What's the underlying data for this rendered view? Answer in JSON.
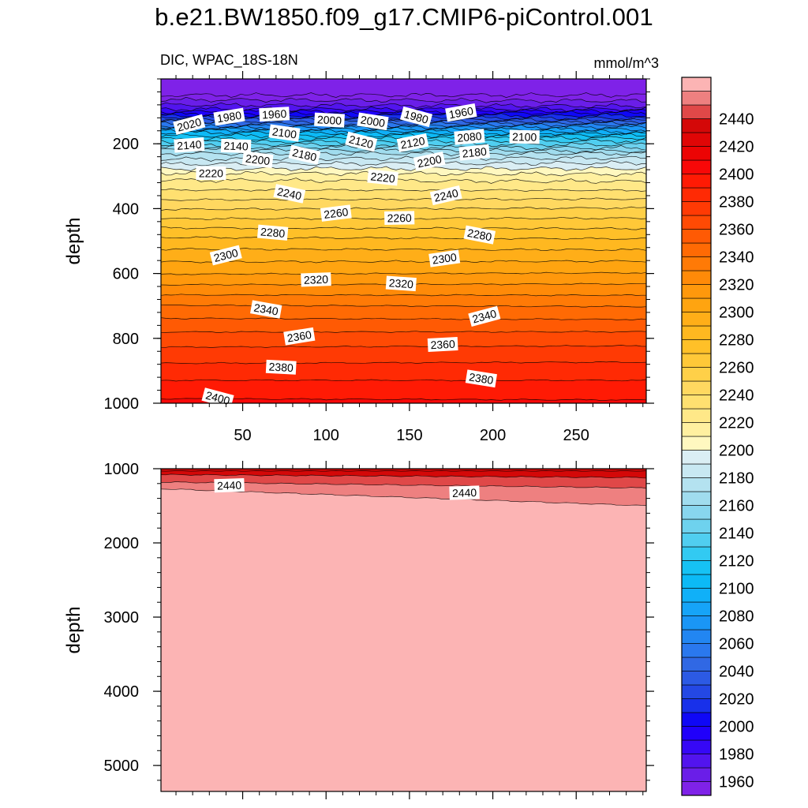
{
  "title": "b.e21.BW1850.f09_g17.CMIP6-piControl.001",
  "subtitle_left": "DIC, WPAC_18S-18N",
  "subtitle_right": "mmol/m^3",
  "colors": {
    "levels": [
      1950,
      1960,
      1970,
      1980,
      1990,
      2000,
      2010,
      2020,
      2030,
      2040,
      2050,
      2060,
      2070,
      2080,
      2090,
      2100,
      2110,
      2120,
      2130,
      2140,
      2150,
      2160,
      2170,
      2180,
      2190,
      2200,
      2210,
      2220,
      2230,
      2240,
      2250,
      2260,
      2270,
      2280,
      2290,
      2300,
      2310,
      2320,
      2330,
      2340,
      2350,
      2360,
      2370,
      2380,
      2390,
      2400,
      2410,
      2420,
      2430,
      2440,
      2450,
      2460
    ],
    "palette": [
      "#7f22e8",
      "#6a1ee8",
      "#5214ee",
      "#3608f6",
      "#2000fa",
      "#0f08f6",
      "#1830ea",
      "#2448e4",
      "#2c5ae4",
      "#3068e4",
      "#2a78ee",
      "#2286f2",
      "#1a96f6",
      "#16a4f8",
      "#10b0f8",
      "#0cbaf6",
      "#16c2f4",
      "#32caf2",
      "#50cef0",
      "#6ed2ee",
      "#88d6ee",
      "#a0dcee",
      "#b4e2f0",
      "#c8e8f2",
      "#daeef4",
      "#fff8c0",
      "#fff0a0",
      "#ffe888",
      "#ffe070",
      "#ffd860",
      "#ffd048",
      "#ffc838",
      "#ffc028",
      "#ffb820",
      "#ffae18",
      "#ffa410",
      "#ff980c",
      "#ff8a08",
      "#ff7a06",
      "#ff6a04",
      "#ff5a04",
      "#ff4a04",
      "#ff3a04",
      "#ff2a04",
      "#ff1a04",
      "#f80808",
      "#ec0404",
      "#e00606",
      "#d40808",
      "#e04848",
      "#ee8080",
      "#fcb4b4"
    ],
    "axis": "#000000"
  },
  "chart_data": [
    {
      "panel": "upper",
      "type": "contour",
      "x_range": [
        1,
        292
      ],
      "y_range": [
        1000,
        0
      ],
      "x_ticks": [
        50,
        100,
        150,
        200,
        250
      ],
      "y_ticks": [
        200,
        400,
        600,
        800,
        1000
      ],
      "ylabel": "depth",
      "profile_depth": [
        50,
        90,
        120,
        170,
        230,
        300,
        400,
        500,
        600,
        700,
        800,
        900,
        1000
      ],
      "profile_value": [
        1950,
        1975,
        2020,
        2105,
        2170,
        2215,
        2250,
        2283,
        2310,
        2340,
        2365,
        2385,
        2402
      ],
      "contour_labels": [
        {
          "text": "2020",
          "x": 18,
          "y": 142
        },
        {
          "text": "1980",
          "x": 42,
          "y": 118
        },
        {
          "text": "1960",
          "x": 69,
          "y": 110
        },
        {
          "text": "2000",
          "x": 102,
          "y": 128
        },
        {
          "text": "2000",
          "x": 128,
          "y": 132
        },
        {
          "text": "1980",
          "x": 154,
          "y": 118
        },
        {
          "text": "1960",
          "x": 181,
          "y": 105
        },
        {
          "text": "2140",
          "x": 18,
          "y": 205
        },
        {
          "text": "2140",
          "x": 46,
          "y": 208
        },
        {
          "text": "2100",
          "x": 75,
          "y": 168
        },
        {
          "text": "2120",
          "x": 121,
          "y": 195
        },
        {
          "text": "2120",
          "x": 152,
          "y": 198
        },
        {
          "text": "2080",
          "x": 186,
          "y": 180
        },
        {
          "text": "2100",
          "x": 219,
          "y": 180
        },
        {
          "text": "2200",
          "x": 59,
          "y": 250
        },
        {
          "text": "2180",
          "x": 87,
          "y": 235
        },
        {
          "text": "2200",
          "x": 162,
          "y": 255
        },
        {
          "text": "2180",
          "x": 189,
          "y": 228
        },
        {
          "text": "2220",
          "x": 31,
          "y": 292
        },
        {
          "text": "2220",
          "x": 134,
          "y": 305
        },
        {
          "text": "2240",
          "x": 78,
          "y": 355
        },
        {
          "text": "2240",
          "x": 172,
          "y": 360
        },
        {
          "text": "2260",
          "x": 106,
          "y": 415
        },
        {
          "text": "2260",
          "x": 144,
          "y": 430
        },
        {
          "text": "2280",
          "x": 68,
          "y": 475
        },
        {
          "text": "2280",
          "x": 192,
          "y": 482
        },
        {
          "text": "2300",
          "x": 40,
          "y": 545
        },
        {
          "text": "2300",
          "x": 171,
          "y": 555
        },
        {
          "text": "2320",
          "x": 94,
          "y": 620
        },
        {
          "text": "2320",
          "x": 145,
          "y": 632
        },
        {
          "text": "2340",
          "x": 64,
          "y": 712
        },
        {
          "text": "2340",
          "x": 195,
          "y": 733
        },
        {
          "text": "2360",
          "x": 84,
          "y": 795
        },
        {
          "text": "2360",
          "x": 170,
          "y": 820
        },
        {
          "text": "2380",
          "x": 73,
          "y": 890
        },
        {
          "text": "2380",
          "x": 193,
          "y": 925
        },
        {
          "text": "2400",
          "x": 35,
          "y": 985
        }
      ]
    },
    {
      "panel": "lower",
      "type": "contour",
      "x_range": [
        1,
        292
      ],
      "y_range": [
        5350,
        1000
      ],
      "y_ticks": [
        1000,
        2000,
        3000,
        4000,
        5000
      ],
      "ylabel": "depth",
      "boundary_x": [
        1,
        292
      ],
      "boundary_2420": [
        1080,
        1120
      ],
      "boundary_2430": [
        1180,
        1260
      ],
      "boundary_2440": [
        1270,
        1500
      ],
      "deep_value": 2460,
      "contour_labels": [
        {
          "text": "2440",
          "x": 42,
          "y": 1230
        },
        {
          "text": "2440",
          "x": 183,
          "y": 1330
        }
      ]
    }
  ],
  "colorbar": {
    "labels": [
      "2440",
      "2420",
      "2400",
      "2380",
      "2360",
      "2340",
      "2320",
      "2300",
      "2280",
      "2260",
      "2240",
      "2220",
      "2200",
      "2180",
      "2160",
      "2140",
      "2120",
      "2100",
      "2080",
      "2060",
      "2040",
      "2020",
      "2000",
      "1980",
      "1960"
    ]
  }
}
